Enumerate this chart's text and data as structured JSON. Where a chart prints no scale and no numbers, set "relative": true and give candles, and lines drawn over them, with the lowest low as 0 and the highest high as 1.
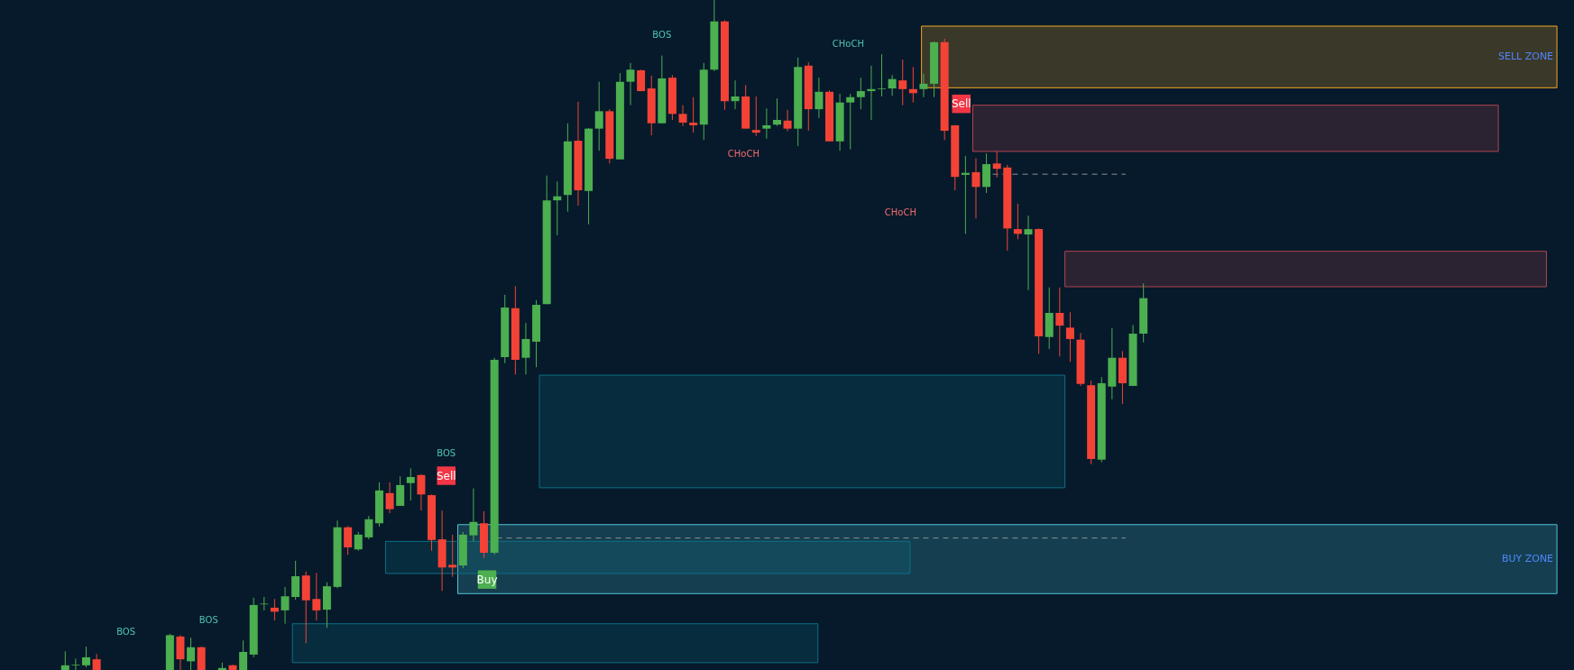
{
  "chart_data": {
    "type": "candlestick",
    "relative": true,
    "categories": [
      null,
      null,
      null,
      null,
      null,
      null,
      null,
      null,
      null,
      null,
      null,
      null,
      null,
      null,
      null,
      null,
      null,
      null,
      null,
      null,
      null,
      null,
      null,
      null,
      null,
      null,
      null,
      null,
      null,
      null,
      null,
      null,
      null,
      null,
      null,
      null,
      null,
      null,
      null,
      null,
      null,
      null,
      null,
      null,
      null,
      null,
      null,
      null,
      null,
      null,
      null,
      null,
      null,
      null,
      null,
      null,
      null,
      null,
      null,
      null,
      null,
      null,
      null,
      null,
      null,
      null,
      null,
      null,
      null,
      null,
      null,
      null,
      null,
      null,
      null,
      null,
      null,
      null,
      null,
      null,
      null,
      null,
      null,
      null,
      null,
      null,
      null,
      null,
      null,
      null,
      null,
      null,
      null,
      null,
      null,
      null,
      null,
      null,
      null,
      null,
      null,
      null,
      null,
      null
    ],
    "ohlc": [
      [
        0,
        0.028,
        0,
        0.007
      ],
      [
        0.007,
        0.017,
        0,
        0.008
      ],
      [
        0.007,
        0.035,
        0.004,
        0.019
      ],
      [
        0.016,
        0.024,
        0,
        0
      ],
      null,
      null,
      null,
      null,
      null,
      null,
      [
        0,
        0.054,
        0,
        0.052
      ],
      [
        0.05,
        0.052,
        0,
        0.016
      ],
      [
        0.013,
        0.048,
        0,
        0.034
      ],
      [
        0.034,
        0.035,
        0,
        0
      ],
      null,
      [
        0,
        0.011,
        0,
        0.003
      ],
      [
        0.007,
        0.008,
        0,
        0
      ],
      [
        0,
        0.044,
        0,
        0.027
      ],
      [
        0.023,
        0.108,
        0.019,
        0.097
      ],
      [
        0.098,
        0.109,
        0.089,
        0.099
      ],
      [
        0.093,
        0.106,
        0.074,
        0.087
      ],
      [
        0.089,
        0.124,
        0.069,
        0.11
      ],
      [
        0.109,
        0.163,
        0.105,
        0.14
      ],
      [
        0.141,
        0.147,
        0.04,
        0.104
      ],
      [
        0.106,
        0.145,
        0.074,
        0.089
      ],
      [
        0.09,
        0.131,
        0.063,
        0.125
      ],
      [
        0.124,
        0.223,
        0.122,
        0.213
      ],
      [
        0.213,
        0.215,
        0.172,
        0.183
      ],
      [
        0.18,
        0.206,
        0.178,
        0.202
      ],
      [
        0.198,
        0.23,
        0.195,
        0.225
      ],
      [
        0.219,
        0.28,
        0.214,
        0.268
      ],
      [
        0.264,
        0.28,
        0.234,
        0.24
      ],
      [
        0.245,
        0.289,
        0.245,
        0.276
      ],
      [
        0.279,
        0.301,
        0.253,
        0.288
      ],
      [
        0.291,
        0.292,
        0.238,
        0.262
      ],
      [
        0.261,
        0.262,
        0.178,
        0.194
      ],
      [
        0.195,
        0.238,
        0.118,
        0.153
      ],
      [
        0.157,
        0.202,
        0.139,
        0.153
      ],
      [
        0.156,
        0.206,
        0.152,
        0.202
      ],
      [
        0.201,
        0.271,
        0.192,
        0.221
      ],
      [
        0.219,
        0.237,
        0.167,
        0.175
      ],
      [
        0.175,
        0.466,
        0.172,
        0.463
      ],
      [
        0.467,
        0.56,
        0.458,
        0.541
      ],
      [
        0.54,
        0.573,
        0.441,
        0.463
      ],
      [
        0.466,
        0.518,
        0.441,
        0.494
      ],
      [
        0.49,
        0.552,
        0.452,
        0.545
      ],
      [
        0.546,
        0.738,
        0.546,
        0.701
      ],
      [
        0.701,
        0.729,
        0.649,
        0.707
      ],
      [
        0.709,
        0.816,
        0.684,
        0.789
      ],
      [
        0.79,
        0.848,
        0.693,
        0.716
      ],
      [
        0.715,
        0.809,
        0.665,
        0.808
      ],
      [
        0.808,
        0.878,
        0.775,
        0.834
      ],
      [
        0.834,
        0.837,
        0.756,
        0.763
      ],
      [
        0.762,
        0.891,
        0.762,
        0.878
      ],
      [
        0.878,
        0.906,
        0.843,
        0.896
      ],
      [
        0.895,
        0.896,
        0.864,
        0.864
      ],
      [
        0.868,
        0.887,
        0.798,
        0.816
      ],
      [
        0.816,
        0.917,
        0.816,
        0.883
      ],
      [
        0.884,
        0.888,
        0.821,
        0.83
      ],
      [
        0.83,
        0.843,
        0.812,
        0.817
      ],
      [
        0.817,
        0.855,
        0.802,
        0.813
      ],
      [
        0.814,
        0.906,
        0.791,
        0.896
      ],
      [
        0.896,
        1,
        0.894,
        0.968
      ],
      [
        0.968,
        0.97,
        0.836,
        0.849
      ],
      [
        0.849,
        0.88,
        0.837,
        0.856
      ],
      [
        0.856,
        0.873,
        0.808,
        0.808
      ],
      [
        0.806,
        0.856,
        0.797,
        0.802
      ],
      [
        0.808,
        0.838,
        0.793,
        0.813
      ],
      [
        0.814,
        0.853,
        0.812,
        0.821
      ],
      [
        0.82,
        0.836,
        0.804,
        0.808
      ],
      [
        0.808,
        0.914,
        0.782,
        0.9
      ],
      [
        0.902,
        0.907,
        0.805,
        0.837
      ],
      [
        0.837,
        0.884,
        0.824,
        0.863
      ],
      [
        0.863,
        0.865,
        0.789,
        0.789
      ],
      [
        0.789,
        0.86,
        0.775,
        0.847
      ],
      [
        0.847,
        0.86,
        0.777,
        0.855
      ],
      [
        0.855,
        0.884,
        0.837,
        0.864
      ],
      [
        0.864,
        0.902,
        0.821,
        0.867
      ],
      [
        0.867,
        0.919,
        0.856,
        0.868
      ],
      [
        0.868,
        0.888,
        0.857,
        0.882
      ],
      [
        0.88,
        0.911,
        0.843,
        0.867
      ],
      [
        0.867,
        0.9,
        0.847,
        0.861
      ],
      [
        0.867,
        0.89,
        0.855,
        0.875
      ],
      [
        0.875,
        0.938,
        0.855,
        0.937
      ],
      [
        0.937,
        0.942,
        0.791,
        0.805
      ],
      [
        0.813,
        0.813,
        0.716,
        0.736
      ],
      [
        0.739,
        0.767,
        0.651,
        0.742
      ],
      [
        0.743,
        0.764,
        0.674,
        0.721
      ],
      [
        0.721,
        0.771,
        0.712,
        0.755
      ],
      [
        0.756,
        0.774,
        0.735,
        0.748
      ],
      [
        0.75,
        0.754,
        0.626,
        0.659
      ],
      [
        0.658,
        0.696,
        0.643,
        0.651
      ],
      [
        0.65,
        0.678,
        0.567,
        0.658
      ],
      [
        0.658,
        0.659,
        0.472,
        0.498
      ],
      [
        0.497,
        0.571,
        0.479,
        0.533
      ],
      [
        0.533,
        0.571,
        0.468,
        0.514
      ],
      [
        0.511,
        0.534,
        0.46,
        0.494
      ],
      [
        0.493,
        0.503,
        0.424,
        0.427
      ],
      [
        0.425,
        0.432,
        0.307,
        0.315
      ],
      [
        0.314,
        0.437,
        0.31,
        0.428
      ],
      [
        0.423,
        0.51,
        0.404,
        0.466
      ],
      [
        0.466,
        0.476,
        0.397,
        0.428
      ],
      [
        0.424,
        0.515,
        0.424,
        0.502
      ],
      [
        0.502,
        0.577,
        0.489,
        0.555
      ]
    ],
    "colors": [
      "#4caf50",
      "#4caf50",
      "#4caf50",
      "#f44336",
      null,
      null,
      null,
      null,
      null,
      null,
      "#4caf50",
      "#f44336",
      "#4caf50",
      "#f44336",
      null,
      "#4caf50",
      "#f44336",
      "#4caf50",
      "#4caf50",
      "#4caf50",
      "#f44336",
      "#4caf50",
      "#4caf50",
      "#f44336",
      "#f44336",
      "#4caf50",
      "#4caf50",
      "#f44336",
      "#4caf50",
      "#4caf50",
      "#4caf50",
      "#f44336",
      "#4caf50",
      "#4caf50",
      "#f44336",
      "#f44336",
      "#f44336",
      "#f44336",
      "#4caf50",
      "#4caf50",
      "#f44336",
      "#4caf50",
      "#4caf50",
      "#f44336",
      "#4caf50",
      "#4caf50",
      "#4caf50",
      "#4caf50",
      "#4caf50",
      "#f44336",
      "#4caf50",
      "#4caf50",
      "#f44336",
      "#4caf50",
      "#4caf50",
      "#f44336",
      "#f44336",
      "#4caf50",
      "#f44336",
      "#f44336",
      "#f44336",
      "#4caf50",
      "#4caf50",
      "#f44336",
      "#4caf50",
      "#f44336",
      "#f44336",
      "#4caf50",
      "#4caf50",
      "#f44336",
      "#4caf50",
      "#f44336",
      "#4caf50",
      "#f44336",
      "#4caf50",
      "#4caf50",
      "#4caf50",
      "#4caf50",
      "#4caf50",
      "#4caf50",
      "#f44336",
      "#f44336",
      "#4caf50",
      "#4caf50",
      "#f44336",
      "#f44336",
      "#4caf50",
      "#f44336",
      "#4caf50",
      "#f44336",
      "#f44336",
      "#f44336",
      "#4caf50",
      "#f44336",
      "#4caf50",
      "#f44336",
      "#f44336",
      "#f44336",
      "#f44336",
      "#4caf50",
      "#4caf50",
      "#f44336",
      "#4caf50",
      "#4caf50"
    ],
    "bands": [
      {
        "axis": "y",
        "from": 0.869,
        "to": 0.961,
        "label": "SELL ZONE",
        "color": "#f5a623"
      },
      {
        "axis": "y",
        "from": 0.774,
        "to": 0.843,
        "color": "#b2434f"
      },
      {
        "axis": "y",
        "from": 0.572,
        "to": 0.625,
        "color": "#b2434f"
      },
      {
        "axis": "y",
        "from": 0.272,
        "to": 0.44,
        "color": "#0e6f86"
      },
      {
        "axis": "y",
        "from": 0.114,
        "to": 0.217,
        "label": "BUY ZONE",
        "color": "#4fc3d6"
      },
      {
        "axis": "y",
        "from": 0.144,
        "to": 0.192,
        "color": "#0e6f86"
      },
      {
        "axis": "y",
        "from": 0.011,
        "to": 0.069,
        "color": "#0e6f86"
      }
    ],
    "ref_lines": [
      {
        "axis": "y",
        "value": 0.74,
        "line_style": "dashed",
        "color": "#8a9199"
      },
      {
        "axis": "y",
        "value": 0.197,
        "line_style": "dashed",
        "color": "#8a9199"
      }
    ],
    "annotations": [
      "BOS",
      "BOS",
      "BOS",
      "BOS",
      "CHoCH",
      "CHoCH",
      "CHoCH",
      "Sell",
      "Sell",
      "Buy"
    ],
    "grid": false
  }
}
